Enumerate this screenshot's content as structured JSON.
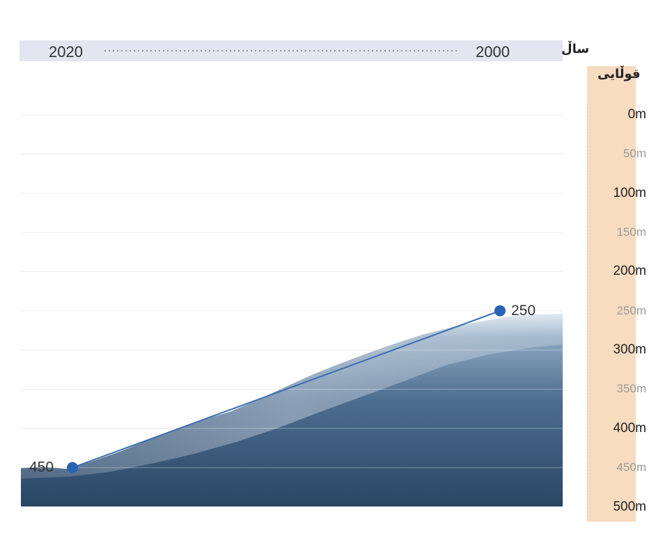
{
  "chart_data": {
    "type": "line",
    "x_axis_title": "ساڵ",
    "y_axis_title": "قوڵایی",
    "x": [
      "2020",
      "2000"
    ],
    "series": [
      {
        "values": [
          450,
          250
        ],
        "point_labels": [
          "450",
          "250"
        ]
      }
    ],
    "y_ticks": [
      "0m",
      "50m",
      "100m",
      "150m",
      "200m",
      "250m",
      "300m",
      "350m",
      "400m",
      "450m",
      "500m"
    ],
    "ylim": [
      0,
      500
    ],
    "y_inverted": true,
    "grid": true,
    "colors": {
      "line": "#3a6db3",
      "point": "#2a62b4",
      "depth_band": "#f8dcc0",
      "year_band": "#e3e6f0",
      "water_top": "#cfdbe6",
      "water_bottom": "#2f4e70"
    }
  }
}
